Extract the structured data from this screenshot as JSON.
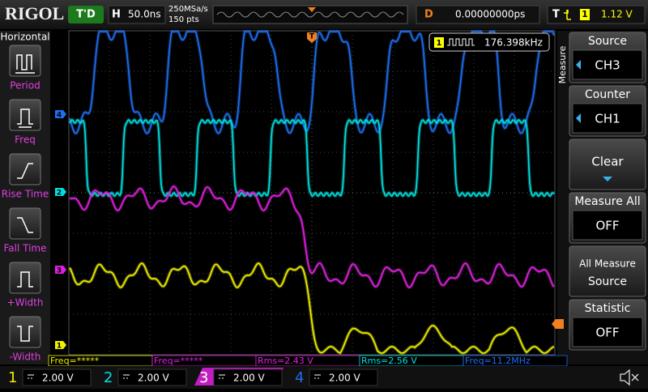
{
  "top_bar": {
    "brand": "RIGOL",
    "status": "T'D",
    "h_label": "H",
    "timebase": "50.0ns",
    "sample_rate": "250MSa/s",
    "points": "150 pts",
    "d_label": "D",
    "delay": "0.00000000ps",
    "t_label": "T",
    "trigger_channel": "1",
    "trigger_level": "1.12 V"
  },
  "left_menu": {
    "title": "Horizontal",
    "items": [
      "Period",
      "Freq",
      "Rise Time",
      "Fall Time",
      "+Width",
      "-Width"
    ]
  },
  "right_menu": {
    "label": "Measure",
    "items": [
      {
        "title": "Source",
        "value": "CH3"
      },
      {
        "title": "Counter",
        "value": "CH1"
      },
      {
        "title": "Clear"
      },
      {
        "title": "Measure All",
        "value": "OFF"
      },
      {
        "title": "All Measure",
        "value": "Source"
      },
      {
        "title": "Statistic",
        "value": "OFF"
      }
    ]
  },
  "counter": {
    "channel": "1",
    "value": "176.398kHz"
  },
  "measurements": [
    "Freq=*****",
    "Freq=*****",
    "Rms=2.43 V",
    "Rms=2.56 V",
    "Freq=11.2MHz"
  ],
  "channels": [
    {
      "number": "1",
      "scale": "2.00 V"
    },
    {
      "number": "2",
      "scale": "2.00 V"
    },
    {
      "number": "3",
      "scale": "2.00 V"
    },
    {
      "number": "4",
      "scale": "2.00 V"
    }
  ],
  "markers": [
    "4",
    "2",
    "3",
    "1"
  ],
  "trigger_marker": "T"
}
